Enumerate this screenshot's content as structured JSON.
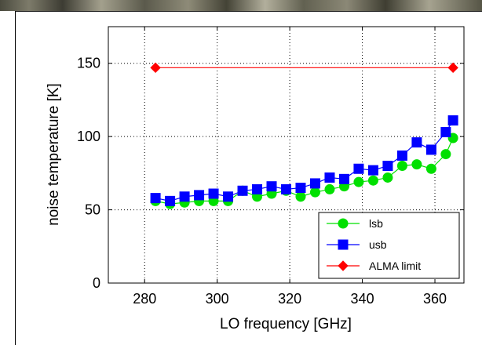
{
  "chart_data": {
    "type": "line",
    "title": "",
    "xlabel": "LO frequency [GHz]",
    "ylabel": "noise temperature [K]",
    "xlim": [
      270,
      368
    ],
    "ylim": [
      0,
      175
    ],
    "x_ticks": [
      280,
      300,
      320,
      340,
      360
    ],
    "y_ticks": [
      0,
      50,
      100,
      150
    ],
    "grid": true,
    "legend_position": "bottom-right",
    "series": [
      {
        "name": "lsb",
        "color": "#00e000",
        "marker": "circle",
        "x": [
          283,
          287,
          291,
          295,
          299,
          303,
          307,
          311,
          315,
          319,
          323,
          327,
          331,
          335,
          339,
          343,
          347,
          351,
          355,
          359,
          363,
          365
        ],
        "y": [
          56,
          54,
          55,
          56,
          56,
          56,
          63,
          59,
          61,
          63,
          59,
          62,
          64,
          66,
          69,
          70,
          72,
          80,
          81,
          78,
          88,
          99
        ]
      },
      {
        "name": "usb",
        "color": "#0000ff",
        "marker": "square",
        "x": [
          283,
          287,
          291,
          295,
          299,
          303,
          307,
          311,
          315,
          319,
          323,
          327,
          331,
          335,
          339,
          343,
          347,
          351,
          355,
          359,
          363,
          365
        ],
        "y": [
          58,
          56,
          59,
          60,
          61,
          59,
          63,
          64,
          66,
          64,
          65,
          68,
          72,
          71,
          78,
          77,
          80,
          87,
          96,
          91,
          103,
          111
        ]
      },
      {
        "name": "ALMA limit",
        "color": "#ff0000",
        "marker": "diamond",
        "x": [
          283,
          365
        ],
        "y": [
          147,
          147
        ]
      }
    ]
  }
}
